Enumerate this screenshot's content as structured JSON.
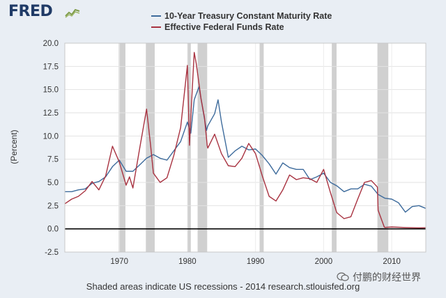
{
  "logo": {
    "text": "FRED"
  },
  "watermark": {
    "text": "付鹏的财经世界",
    "icon": "chat-bubble-icon"
  },
  "footer": {
    "note": "Shaded areas indicate US recessions - 2014 research.stlouisfed.org"
  },
  "colors": {
    "series_blue": "#3d6b9c",
    "series_red": "#a83240",
    "recession": "#d0d0d0",
    "zero_line": "#000000"
  },
  "chart_data": {
    "type": "line",
    "title": "",
    "xlabel": "",
    "ylabel": "(Percent)",
    "xlim": [
      1962,
      2015
    ],
    "ylim": [
      -2.5,
      20.0
    ],
    "y_ticks": [
      "-2.5",
      "0.0",
      "2.5",
      "5.0",
      "7.5",
      "10.0",
      "12.5",
      "15.0",
      "17.5",
      "20.0"
    ],
    "x_ticks": [
      "1970",
      "1980",
      "1990",
      "2000",
      "2010"
    ],
    "grid": true,
    "legend_position": "top",
    "recessions": [
      [
        1969.9,
        1970.9
      ],
      [
        1973.9,
        1975.2
      ],
      [
        1980.0,
        1980.5
      ],
      [
        1981.5,
        1982.9
      ],
      [
        1990.6,
        1991.2
      ],
      [
        2001.2,
        2001.9
      ],
      [
        2007.9,
        2009.5
      ]
    ],
    "series": [
      {
        "name": "10-Year Treasury Constant Maturity Rate",
        "color": "#3d6b9c",
        "x": [
          1962.0,
          1963.0,
          1964.0,
          1965.0,
          1966.0,
          1967.0,
          1968.0,
          1969.0,
          1970.0,
          1971.0,
          1972.0,
          1973.0,
          1974.0,
          1975.0,
          1976.0,
          1977.0,
          1978.0,
          1979.0,
          1980.0,
          1980.5,
          1981.0,
          1981.7,
          1982.0,
          1982.8,
          1983.0,
          1984.0,
          1984.5,
          1985.0,
          1986.0,
          1987.0,
          1988.0,
          1989.0,
          1990.0,
          1991.0,
          1992.0,
          1993.0,
          1994.0,
          1995.0,
          1996.0,
          1997.0,
          1998.0,
          1999.0,
          2000.0,
          2001.0,
          2002.0,
          2003.0,
          2004.0,
          2005.0,
          2006.0,
          2007.0,
          2008.0,
          2009.0,
          2010.0,
          2011.0,
          2012.0,
          2013.0,
          2014.0,
          2015.0
        ],
        "values": [
          4.0,
          4.0,
          4.2,
          4.3,
          4.9,
          5.1,
          5.6,
          6.7,
          7.4,
          6.2,
          6.2,
          6.9,
          7.6,
          8.0,
          7.6,
          7.4,
          8.4,
          9.4,
          11.5,
          10.3,
          13.9,
          15.3,
          14.0,
          10.6,
          11.1,
          12.4,
          13.9,
          11.5,
          7.7,
          8.4,
          8.9,
          8.5,
          8.6,
          7.9,
          7.0,
          5.9,
          7.1,
          6.6,
          6.4,
          6.4,
          5.3,
          5.6,
          6.0,
          5.0,
          4.6,
          4.0,
          4.3,
          4.3,
          4.8,
          4.6,
          3.7,
          3.3,
          3.2,
          2.8,
          1.8,
          2.4,
          2.5,
          2.2
        ]
      },
      {
        "name": "Effective Federal Funds Rate",
        "color": "#a83240",
        "x": [
          1962.0,
          1963.0,
          1964.0,
          1965.0,
          1966.0,
          1967.0,
          1968.0,
          1969.0,
          1970.0,
          1971.0,
          1971.5,
          1972.0,
          1973.0,
          1973.5,
          1974.0,
          1974.6,
          1975.0,
          1976.0,
          1977.0,
          1978.0,
          1979.0,
          1980.0,
          1980.3,
          1980.6,
          1981.0,
          1981.3,
          1982.0,
          1982.5,
          1982.9,
          1983.0,
          1984.0,
          1985.0,
          1986.0,
          1987.0,
          1988.0,
          1989.0,
          1990.0,
          1991.0,
          1992.0,
          1993.0,
          1994.0,
          1995.0,
          1996.0,
          1997.0,
          1998.0,
          1999.0,
          2000.0,
          2001.0,
          2001.9,
          2002.0,
          2003.0,
          2004.0,
          2005.0,
          2006.0,
          2007.0,
          2007.9,
          2008.0,
          2008.9,
          2009.0,
          2010.0,
          2012.0,
          2014.0,
          2015.0
        ],
        "values": [
          2.7,
          3.2,
          3.5,
          4.1,
          5.1,
          4.2,
          5.7,
          8.9,
          7.2,
          4.7,
          5.6,
          4.4,
          8.7,
          10.8,
          12.9,
          9.0,
          6.0,
          5.0,
          5.5,
          7.9,
          10.9,
          17.6,
          9.0,
          13.5,
          19.0,
          17.8,
          14.0,
          12.0,
          9.0,
          8.7,
          10.2,
          8.1,
          6.8,
          6.7,
          7.6,
          9.2,
          8.1,
          5.7,
          3.5,
          3.0,
          4.2,
          5.8,
          5.3,
          5.5,
          5.4,
          5.0,
          6.4,
          3.9,
          1.8,
          1.7,
          1.1,
          1.3,
          3.2,
          5.0,
          5.2,
          4.5,
          2.0,
          0.2,
          0.15,
          0.2,
          0.14,
          0.1,
          0.12
        ]
      }
    ]
  }
}
